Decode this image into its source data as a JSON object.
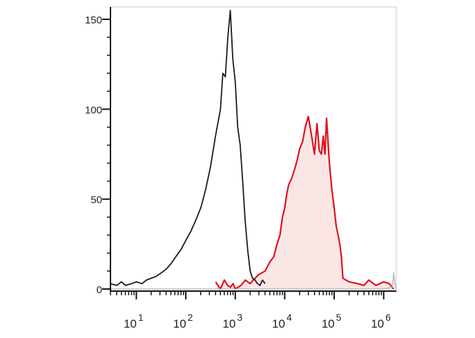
{
  "chart_data": {
    "type": "area",
    "title": "",
    "xlabel": "",
    "ylabel": "",
    "x_scale": "log",
    "xlim": [
      3,
      1800000
    ],
    "ylim": [
      0,
      153
    ],
    "y_ticks": [
      0,
      50,
      100,
      150
    ],
    "y_tick_labels": [
      "0",
      "50",
      "100",
      "150"
    ],
    "x_ticks": [
      {
        "base": "10",
        "exp": "1",
        "value": 10
      },
      {
        "base": "10",
        "exp": "2",
        "value": 100
      },
      {
        "base": "10",
        "exp": "3",
        "value": 1000
      },
      {
        "base": "10",
        "exp": "4",
        "value": 10000
      },
      {
        "base": "10",
        "exp": "5",
        "value": 100000
      },
      {
        "base": "10",
        "exp": "6",
        "value": 1000000
      }
    ],
    "grid": false,
    "legend": "none",
    "series": [
      {
        "color": "#1a1a1a",
        "fill": "none",
        "x": [
          3,
          4,
          5,
          6,
          8,
          10,
          13,
          16,
          20,
          25,
          32,
          40,
          50,
          63,
          80,
          100,
          126,
          158,
          200,
          251,
          316,
          398,
          501,
          562,
          631,
          708,
          794,
          891,
          1000,
          1122,
          1259,
          1413,
          1585,
          1778,
          1995,
          2239,
          2512,
          2818,
          3162,
          3548,
          4000
        ],
        "y": [
          3,
          2,
          4,
          2,
          3,
          4,
          3,
          5,
          6,
          7,
          9,
          11,
          14,
          18,
          22,
          27,
          32,
          38,
          45,
          55,
          68,
          85,
          100,
          120,
          118,
          140,
          155,
          128,
          115,
          90,
          80,
          60,
          38,
          22,
          10,
          6,
          5,
          3,
          2,
          5,
          3
        ]
      },
      {
        "color": "#e0101a",
        "fill": "#fbe6e6",
        "x": [
          400,
          500,
          600,
          700,
          800,
          900,
          1000,
          1300,
          1600,
          2000,
          2500,
          3000,
          4000,
          5000,
          6000,
          7000,
          8000,
          9000,
          10000,
          11000,
          12000,
          13000,
          14000,
          16000,
          18000,
          20000,
          23000,
          26000,
          30000,
          35000,
          40000,
          45000,
          50000,
          55000,
          60000,
          65000,
          70000,
          80000,
          90000,
          100000,
          110000,
          120000,
          130000,
          140000,
          150000,
          200000,
          300000,
          400000,
          500000,
          700000,
          1000000,
          1300000,
          1600000
        ],
        "y": [
          4,
          0,
          5,
          2,
          1,
          3,
          0,
          2,
          5,
          3,
          6,
          8,
          10,
          15,
          18,
          25,
          30,
          40,
          45,
          53,
          58,
          60,
          62,
          67,
          72,
          78,
          82,
          90,
          96,
          85,
          75,
          92,
          77,
          75,
          85,
          75,
          95,
          70,
          55,
          45,
          35,
          30,
          25,
          18,
          6,
          4,
          3,
          2,
          5,
          2,
          4,
          3,
          0
        ]
      },
      {
        "color": "#b8b8b8",
        "fill": "none",
        "x": [
          3,
          10,
          100,
          1000,
          10000,
          100000,
          1000000,
          1500000,
          1600000,
          1700000,
          1800000
        ],
        "y": [
          0,
          0,
          0,
          0,
          0,
          0,
          0,
          1,
          9,
          2,
          0
        ]
      }
    ]
  }
}
